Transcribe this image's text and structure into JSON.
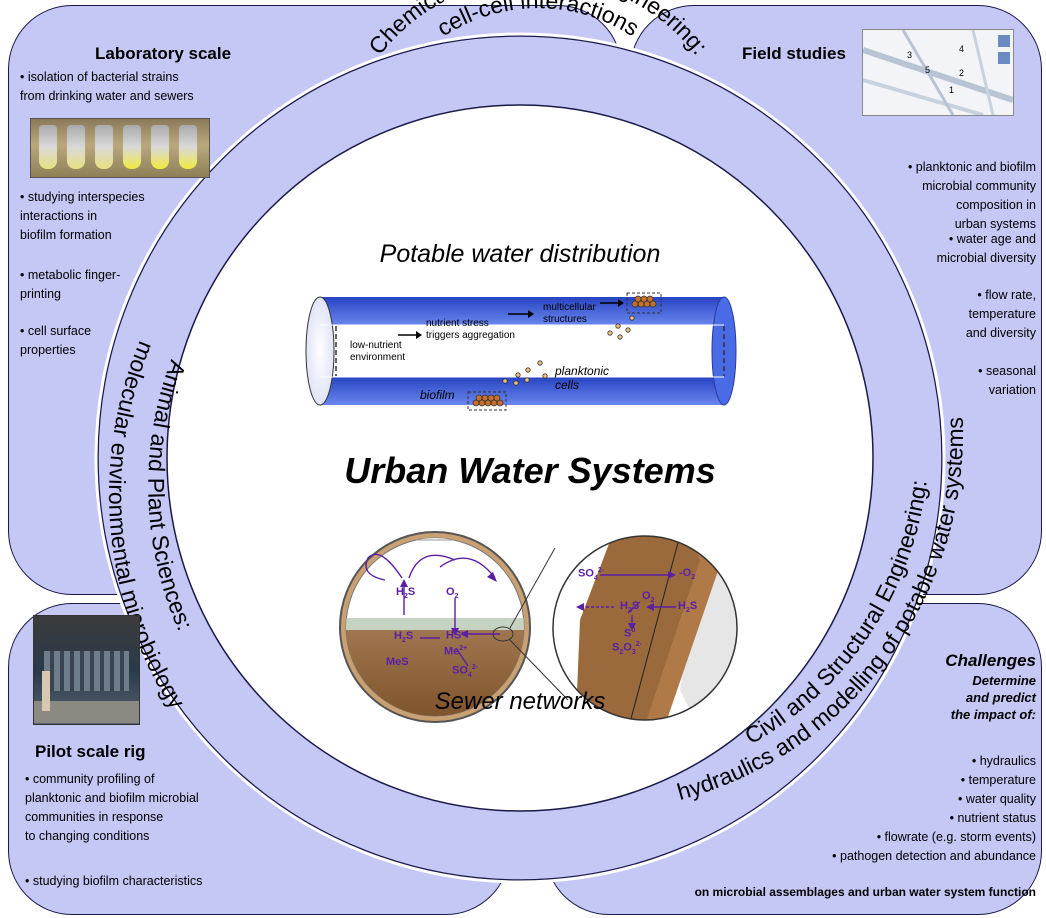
{
  "panels": {
    "lab": {
      "title": "Laboratory scale",
      "bullets": [
        "• isolation of bacterial strains\nfrom drinking water and sewers",
        "• studying interspecies\ninteractions in\nbiofilm formation",
        "• metabolic finger-\nprinting",
        "• cell surface\nproperties"
      ]
    },
    "field": {
      "title": "Field studies",
      "map_labels": [
        "3",
        "4",
        "5",
        "2",
        "1"
      ],
      "bullets": [
        "• planktonic and biofilm\nmicrobial community\ncomposition in\nurban systems",
        "• water age and\nmicrobial diversity",
        "• flow rate,\ntemperature\nand diversity",
        "• seasonal\nvariation"
      ]
    },
    "pilot": {
      "title": "Pilot scale rig",
      "bullets": [
        "• community profiling of\nplanktonic and biofilm microbial\ncommunities in response\nto changing conditions",
        "• studying biofilm characteristics"
      ]
    },
    "challenges": {
      "title": "Challenges",
      "subtitle": "Determine\nand predict\nthe impact of:",
      "bullets": [
        "• hydraulics",
        "• temperature",
        "• water quality",
        "• nutrient status",
        "• flowrate (e.g. storm events)",
        "• pathogen detection and abundance"
      ],
      "footer": "on microbial assemblages and urban water system function"
    }
  },
  "ring": {
    "top_line1": "Chemical and Process Engineering:",
    "top_line2": "cell-cell interactions",
    "left_line1": "Animal and Plant Sciences:",
    "left_line2": "molecular environmental microbiology",
    "right_line1": "Civil and Structural Engineering:",
    "right_line2": "hydraulics and modelling of potable water systems"
  },
  "center": {
    "potable_title": "Potable water distribution",
    "main_title": "Urban Water Systems",
    "sewer_title": "Sewer networks"
  },
  "pipe": {
    "low_nutrient": "low-nutrient\nenvironment",
    "nutrient_stress": "nutrient stress\ntriggers aggregation",
    "multicellular": "multicellular\nstructures",
    "planktonic": "planktonic\ncells",
    "biofilm": "biofilm"
  },
  "sewer": {
    "h2s_top": "H2S",
    "o2": "O2",
    "h2s_arrow": "H2S",
    "hs": "HS-",
    "me": "Me2+",
    "mes": "MeS",
    "so4": "SO42-",
    "zoom_so4": "SO42-",
    "zoom_o2_right": "-O2",
    "zoom_o2": "O2",
    "zoom_h2s": "H2S",
    "zoom_h2s_right": "H2S",
    "zoom_s": "S0",
    "zoom_s2o3": "S2O32-"
  },
  "colors": {
    "panel_fill": "#c5c7f5",
    "ring_fill": "#c5c7f5",
    "pipe_blue": "#3b5fe0",
    "sewer_brown": "#9b6a3c",
    "chem_purple": "#5b1fa6"
  }
}
